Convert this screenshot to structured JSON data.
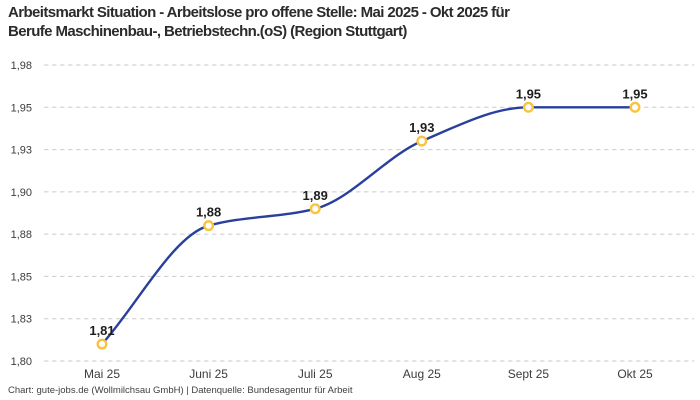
{
  "title": {
    "full": "Arbeitsmarkt Situation - Arbeitslose pro offene Stelle: Mai 2025 - Okt 2025 für Berufe Maschinenbau-, Betriebstechn.(oS) (Region Stuttgart)",
    "line1": "Arbeitsmarkt Situation - Arbeitslose pro offene Stelle: Mai 2025 - Okt 2025 für",
    "line2": "Berufe Maschinenbau-, Betriebstechn.(oS) (Region Stuttgart)"
  },
  "footer": {
    "text": "Chart: gute-jobs.de (Wollmilchsau GmbH) | Datenquelle: Bundesagentur für Arbeit"
  },
  "chart_data": {
    "type": "line",
    "title": "Arbeitsmarkt Situation - Arbeitslose pro offene Stelle: Mai 2025 - Okt 2025 für Berufe Maschinenbau-, Betriebstechn.(oS) (Region Stuttgart)",
    "xlabel": "",
    "ylabel": "",
    "categories": [
      "Mai 25",
      "Juni 25",
      "Juli 25",
      "Aug 25",
      "Sept 25",
      "Okt 25"
    ],
    "series": [
      {
        "name": "Arbeitslose pro offene Stelle",
        "values": [
          1.81,
          1.88,
          1.89,
          1.93,
          1.95,
          1.95
        ],
        "point_labels": [
          "1,81",
          "1,88",
          "1,89",
          "1,93",
          "1,95",
          "1,95"
        ]
      }
    ],
    "ylim": [
      1.8,
      1.975
    ],
    "y_ticks": [
      {
        "value": 1.975,
        "label": "1,98"
      },
      {
        "value": 1.95,
        "label": "1,95"
      },
      {
        "value": 1.925,
        "label": "1,93"
      },
      {
        "value": 1.9,
        "label": "1,90"
      },
      {
        "value": 1.875,
        "label": "1,88"
      },
      {
        "value": 1.85,
        "label": "1,85"
      },
      {
        "value": 1.825,
        "label": "1,83"
      },
      {
        "value": 1.8,
        "label": "1,80"
      }
    ],
    "grid": "horizontal-dashed",
    "legend": "none",
    "smoothing": "monotone-x",
    "colors": {
      "line": "#28409b",
      "marker_ring": "#f9c33f",
      "marker_fill": "#ffffff",
      "grid": "#cbcbcb",
      "axis_text": "#3c3c3c",
      "point_label_text": "#1e1e1e"
    }
  }
}
